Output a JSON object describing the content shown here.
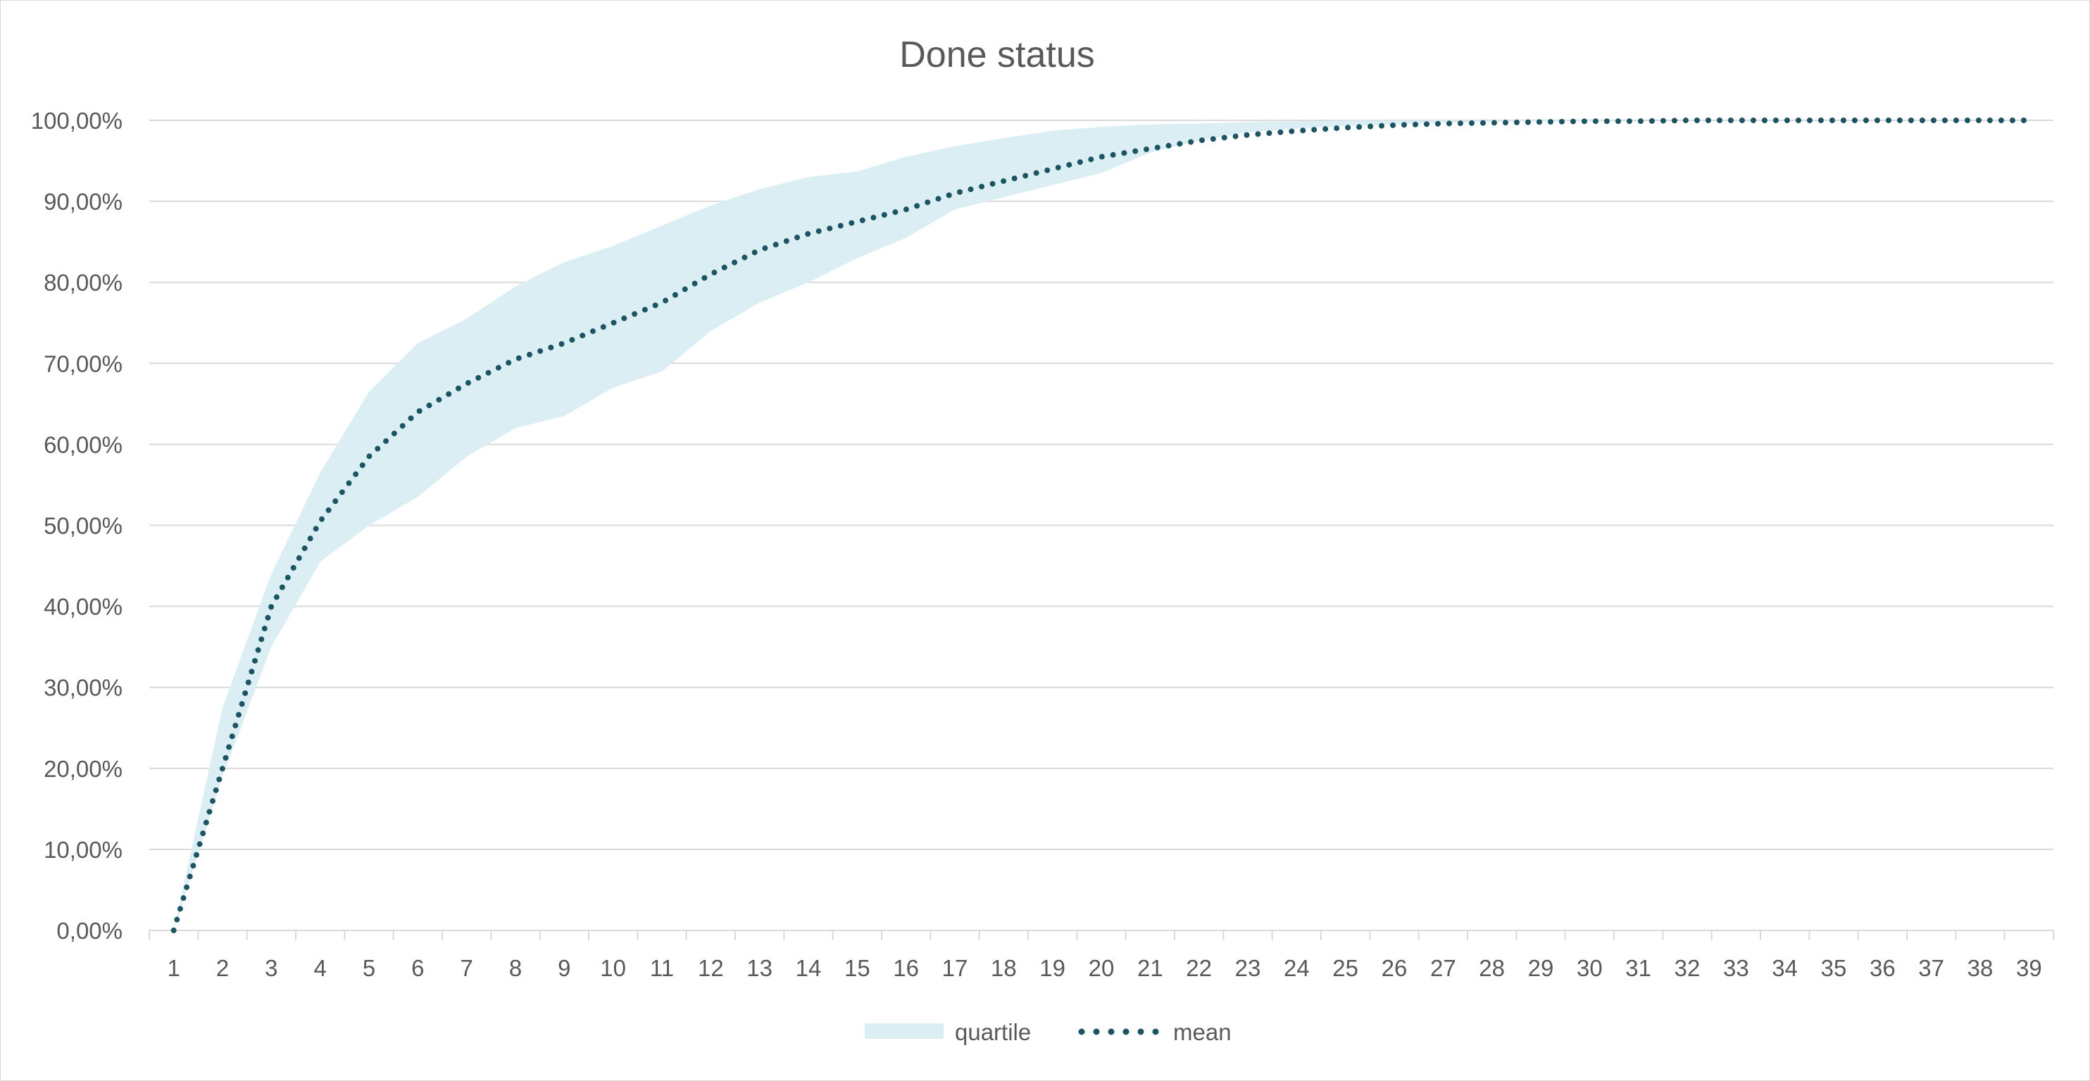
{
  "chart_data": {
    "type": "area",
    "title": "Done status",
    "xlabel": "",
    "ylabel": "",
    "x": [
      1,
      2,
      3,
      4,
      5,
      6,
      7,
      8,
      9,
      10,
      11,
      12,
      13,
      14,
      15,
      16,
      17,
      18,
      19,
      20,
      21,
      22,
      23,
      24,
      25,
      26,
      27,
      28,
      29,
      30,
      31,
      32,
      33,
      34,
      35,
      36,
      37,
      38,
      39
    ],
    "x_tick_labels": [
      "1",
      "2",
      "3",
      "4",
      "5",
      "6",
      "7",
      "8",
      "9",
      "10",
      "11",
      "12",
      "13",
      "14",
      "15",
      "16",
      "17",
      "18",
      "19",
      "20",
      "21",
      "22",
      "23",
      "24",
      "25",
      "26",
      "27",
      "28",
      "29",
      "30",
      "31",
      "32",
      "33",
      "34",
      "35",
      "36",
      "37",
      "38",
      "39"
    ],
    "ylim": [
      0,
      1
    ],
    "y_ticks": [
      0,
      0.1,
      0.2,
      0.3,
      0.4,
      0.5,
      0.6,
      0.7,
      0.8,
      0.9,
      1.0
    ],
    "y_tick_labels": [
      "0,00%",
      "10,00%",
      "20,00%",
      "30,00%",
      "40,00%",
      "50,00%",
      "60,00%",
      "70,00%",
      "80,00%",
      "90,00%",
      "100,00%"
    ],
    "grid": true,
    "legend_position": "bottom",
    "series": [
      {
        "name": "quartile",
        "style": "band",
        "color": "#daeef3",
        "lower": [
          0,
          0.19,
          0.35,
          0.455,
          0.5,
          0.535,
          0.585,
          0.62,
          0.635,
          0.67,
          0.69,
          0.74,
          0.775,
          0.8,
          0.83,
          0.855,
          0.89,
          0.905,
          0.92,
          0.935,
          0.96,
          0.975,
          0.985,
          0.99,
          0.993,
          0.995,
          0.997,
          0.998,
          0.999,
          0.999,
          1,
          1,
          1,
          1,
          1,
          1,
          1,
          1,
          1
        ],
        "upper": [
          0,
          0.275,
          0.44,
          0.565,
          0.665,
          0.725,
          0.755,
          0.795,
          0.825,
          0.845,
          0.87,
          0.895,
          0.915,
          0.93,
          0.937,
          0.955,
          0.968,
          0.978,
          0.987,
          0.992,
          0.995,
          0.996,
          0.998,
          0.999,
          1,
          1,
          1,
          1,
          1,
          1,
          1,
          1,
          1,
          1,
          1,
          1,
          1,
          1,
          1
        ]
      },
      {
        "name": "mean",
        "style": "dotted-line",
        "color": "#1b5563",
        "values": [
          0,
          0.2,
          0.4,
          0.505,
          0.585,
          0.64,
          0.675,
          0.705,
          0.725,
          0.75,
          0.775,
          0.81,
          0.84,
          0.86,
          0.875,
          0.89,
          0.91,
          0.925,
          0.94,
          0.955,
          0.965,
          0.975,
          0.982,
          0.987,
          0.991,
          0.994,
          0.996,
          0.997,
          0.998,
          0.999,
          0.999,
          1,
          1,
          1,
          1,
          1,
          1,
          1,
          1
        ]
      }
    ]
  }
}
